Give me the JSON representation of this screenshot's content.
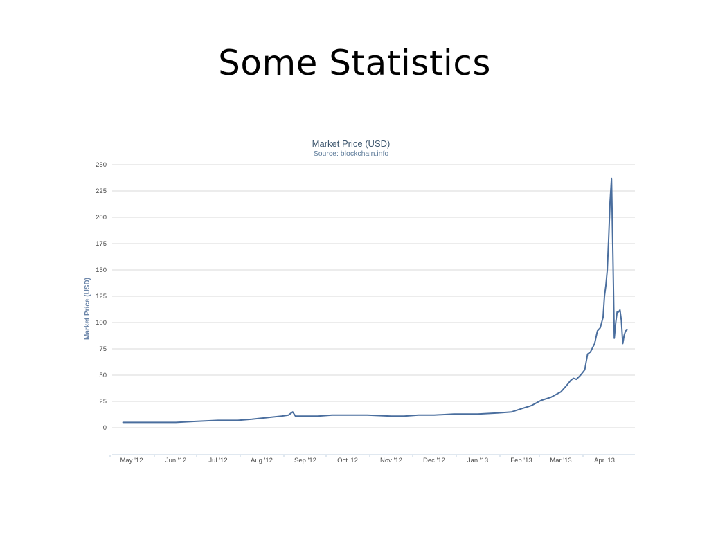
{
  "slide": {
    "title": "Some Statistics"
  },
  "chart_data": {
    "type": "line",
    "title": "Market Price (USD)",
    "subtitle": "Source: blockchain.info",
    "xlabel": "",
    "ylabel": "Market Price (USD)",
    "ylim": [
      0,
      250
    ],
    "yticks": [
      0,
      25,
      50,
      75,
      100,
      125,
      150,
      175,
      200,
      225,
      250
    ],
    "grid": true,
    "legend": "none",
    "colors": {
      "series": "#4a6e9e",
      "title": "#3e576f"
    },
    "x_ticks": [
      "May '12",
      "Jun '12",
      "Jul '12",
      "Aug '12",
      "Sep '12",
      "Oct '12",
      "Nov '12",
      "Dec '12",
      "Jan '13",
      "Feb '13",
      "Mar '13",
      "Apr '13"
    ],
    "series": [
      {
        "name": "",
        "x": [
          "2012-04-25",
          "2012-05-01",
          "2012-05-15",
          "2012-06-01",
          "2012-06-15",
          "2012-07-01",
          "2012-07-15",
          "2012-07-25",
          "2012-08-01",
          "2012-08-08",
          "2012-08-15",
          "2012-08-20",
          "2012-08-23",
          "2012-08-25",
          "2012-09-01",
          "2012-09-05",
          "2012-09-10",
          "2012-09-20",
          "2012-10-01",
          "2012-10-15",
          "2012-11-01",
          "2012-11-10",
          "2012-11-20",
          "2012-12-01",
          "2012-12-15",
          "2013-01-01",
          "2013-01-15",
          "2013-01-25",
          "2013-02-01",
          "2013-02-08",
          "2013-02-15",
          "2013-02-22",
          "2013-03-01",
          "2013-03-05",
          "2013-03-08",
          "2013-03-10",
          "2013-03-12",
          "2013-03-15",
          "2013-03-18",
          "2013-03-20",
          "2013-03-22",
          "2013-03-25",
          "2013-03-27",
          "2013-03-29",
          "2013-03-31",
          "2013-04-01",
          "2013-04-02",
          "2013-04-03",
          "2013-04-04",
          "2013-04-05",
          "2013-04-06",
          "2013-04-07",
          "2013-04-08",
          "2013-04-09",
          "2013-04-10",
          "2013-04-11",
          "2013-04-12",
          "2013-04-13",
          "2013-04-14",
          "2013-04-15",
          "2013-04-16",
          "2013-04-17"
        ],
        "values": [
          5,
          5,
          5,
          5,
          6,
          7,
          7,
          8,
          9,
          10,
          11,
          12,
          15,
          11,
          11,
          11,
          11,
          12,
          12,
          12,
          11,
          11,
          12,
          12,
          13,
          13,
          14,
          15,
          18,
          21,
          26,
          29,
          34,
          40,
          45,
          47,
          46,
          50,
          55,
          70,
          72,
          80,
          92,
          95,
          105,
          125,
          135,
          150,
          180,
          215,
          237,
          165,
          85,
          100,
          110,
          110,
          112,
          102,
          80,
          88,
          92,
          93
        ]
      }
    ]
  }
}
